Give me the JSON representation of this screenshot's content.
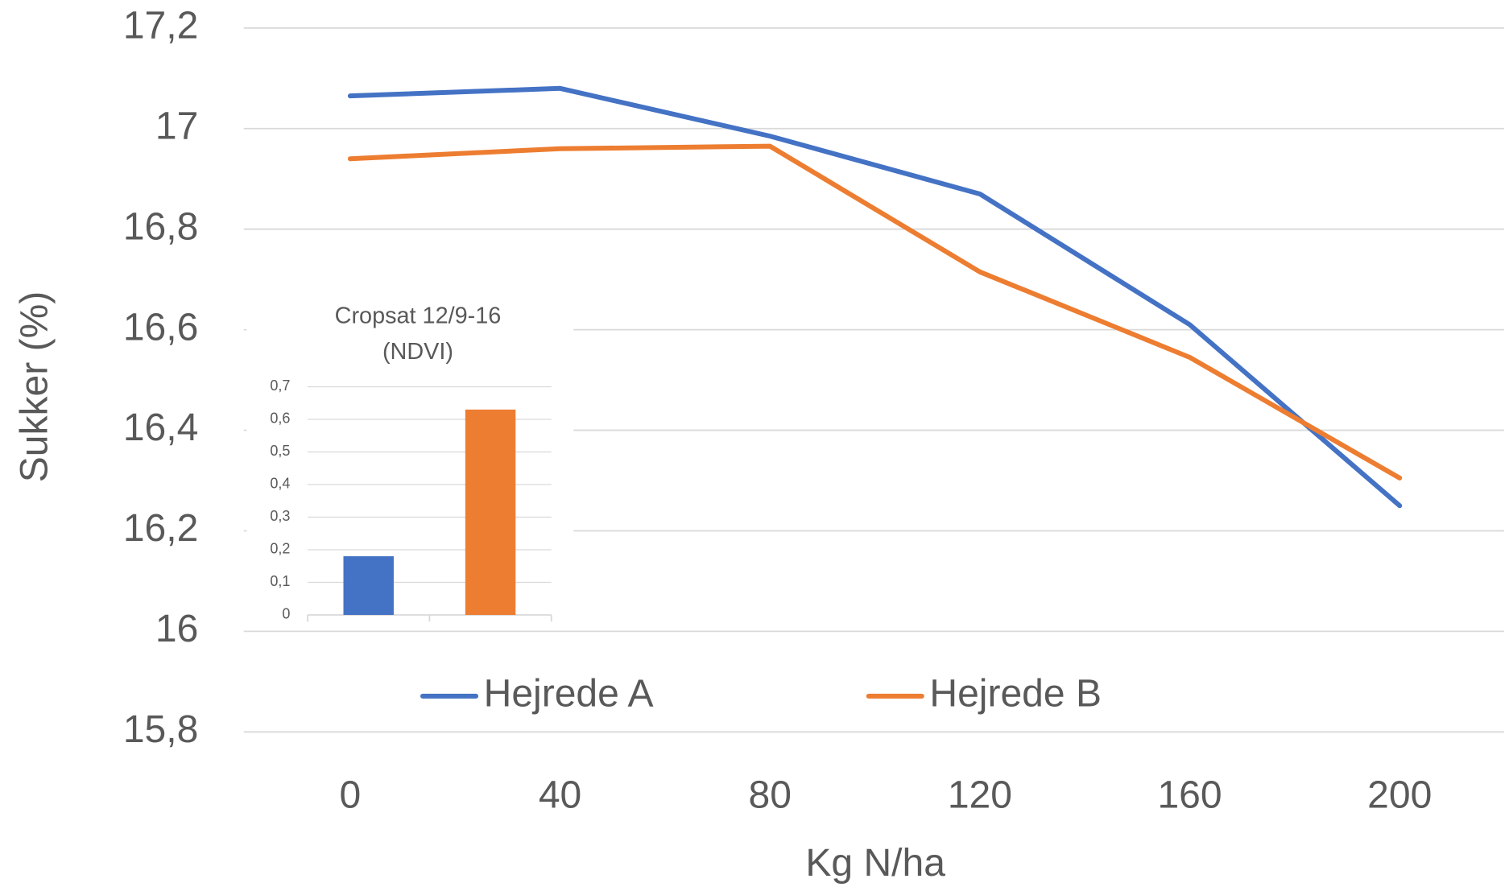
{
  "chart_data": [
    {
      "type": "line",
      "x_label": "Kg N/ha",
      "y_label": "Sukker (%)",
      "categories": [
        "0",
        "40",
        "80",
        "120",
        "160",
        "200"
      ],
      "series": [
        {
          "name": "Hejrede A",
          "color": "#4472c4",
          "values": [
            17.065,
            17.08,
            16.985,
            16.87,
            16.61,
            16.25
          ]
        },
        {
          "name": "Hejrede B",
          "color": "#ed7d31",
          "values": [
            16.94,
            16.96,
            16.965,
            16.715,
            16.545,
            16.305
          ]
        }
      ],
      "ylim": [
        15.8,
        17.2
      ],
      "yticks": [
        {
          "value": 15.8,
          "label": "15,8"
        },
        16,
        {
          "value": 16.2,
          "label": "16,2"
        },
        {
          "value": 16.4,
          "label": "16,4"
        },
        {
          "value": 16.6,
          "label": "16,6"
        },
        {
          "value": 16.8,
          "label": "16,8"
        },
        17,
        {
          "value": 17.2,
          "label": "17,2"
        }
      ],
      "grid": true,
      "legend": "bottom"
    },
    {
      "type": "bar",
      "title": [
        "Cropsat 12/9-16",
        "(NDVI)"
      ],
      "categories": [
        null,
        null
      ],
      "values": [
        0.18,
        0.63
      ],
      "colors": [
        "#4472c4",
        "#ed7d31"
      ],
      "ylim": [
        0,
        0.7
      ],
      "yticks": [
        0,
        {
          "value": 0.1,
          "label": "0,1"
        },
        {
          "value": 0.2,
          "label": "0,2"
        },
        {
          "value": 0.3,
          "label": "0,3"
        },
        {
          "value": 0.4,
          "label": "0,4"
        },
        {
          "value": 0.5,
          "label": "0,5"
        },
        {
          "value": 0.6,
          "label": "0,6"
        },
        {
          "value": 0.7,
          "label": "0,7"
        }
      ],
      "grid": true
    }
  ]
}
